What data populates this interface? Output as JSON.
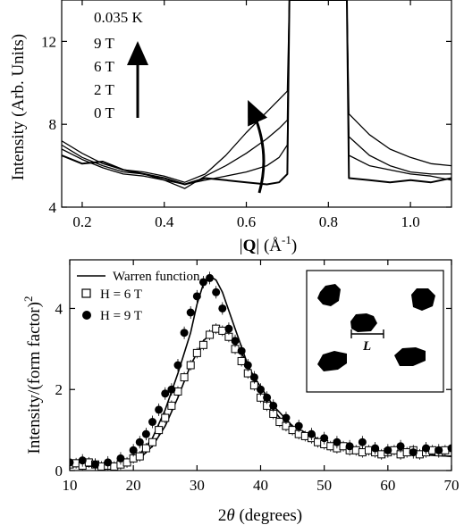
{
  "chart_data": [
    {
      "type": "line",
      "xlabel": "|Q| (Å⁻¹)",
      "xlabel_parts": [
        "|",
        "Q",
        "|",
        " (Å",
        "-1",
        ")"
      ],
      "ylabel": "Intensity (Arb. Units)",
      "xlim": [
        0.15,
        1.1
      ],
      "ylim": [
        4,
        14
      ],
      "x_ticks": [
        0.2,
        0.4,
        0.6,
        0.8,
        1.0
      ],
      "x_tick_labels": [
        "0.2",
        "0.4",
        "0.6",
        "0.8",
        "1.0"
      ],
      "y_ticks": [
        4,
        8,
        12
      ],
      "y_tick_labels": [
        "4",
        "8",
        "12"
      ],
      "legend_title": "0.035 K",
      "field_labels": [
        "9 T",
        "6 T",
        "2 T",
        "0 T"
      ],
      "series": [
        {
          "points": [
            [
              0.15,
              6.5
            ],
            [
              0.2,
              6.1
            ],
            [
              0.25,
              6.2
            ],
            [
              0.3,
              5.8
            ],
            [
              0.35,
              5.6
            ],
            [
              0.4,
              5.4
            ],
            [
              0.45,
              5.1
            ],
            [
              0.5,
              5.4
            ],
            [
              0.55,
              5.3
            ],
            [
              0.6,
              5.2
            ],
            [
              0.65,
              5.1
            ],
            [
              0.68,
              5.2
            ],
            [
              0.7,
              5.6
            ],
            [
              0.705,
              14
            ],
            [
              0.845,
              14
            ],
            [
              0.85,
              5.4
            ],
            [
              0.9,
              5.3
            ],
            [
              0.95,
              5.2
            ],
            [
              1.0,
              5.3
            ],
            [
              1.05,
              5.2
            ],
            [
              1.1,
              5.4
            ]
          ]
        },
        {
          "points": [
            [
              0.15,
              7.0
            ],
            [
              0.2,
              6.4
            ],
            [
              0.25,
              6.0
            ],
            [
              0.3,
              5.7
            ],
            [
              0.35,
              5.6
            ],
            [
              0.4,
              5.3
            ],
            [
              0.45,
              5.1
            ],
            [
              0.5,
              5.3
            ],
            [
              0.55,
              5.5
            ],
            [
              0.6,
              5.7
            ],
            [
              0.65,
              6.0
            ],
            [
              0.68,
              6.4
            ],
            [
              0.7,
              7.0
            ],
            [
              0.705,
              14
            ],
            [
              0.845,
              14
            ],
            [
              0.85,
              6.5
            ],
            [
              0.9,
              6.0
            ],
            [
              0.95,
              5.8
            ],
            [
              1.0,
              5.6
            ],
            [
              1.05,
              5.5
            ],
            [
              1.1,
              5.3
            ]
          ]
        },
        {
          "points": [
            [
              0.15,
              6.8
            ],
            [
              0.2,
              6.3
            ],
            [
              0.25,
              5.9
            ],
            [
              0.3,
              5.6
            ],
            [
              0.35,
              5.5
            ],
            [
              0.4,
              5.3
            ],
            [
              0.45,
              4.9
            ],
            [
              0.5,
              5.5
            ],
            [
              0.55,
              6.0
            ],
            [
              0.6,
              6.6
            ],
            [
              0.65,
              7.3
            ],
            [
              0.68,
              7.8
            ],
            [
              0.7,
              8.2
            ],
            [
              0.705,
              14
            ],
            [
              0.845,
              14
            ],
            [
              0.85,
              7.4
            ],
            [
              0.9,
              6.5
            ],
            [
              0.95,
              6.0
            ],
            [
              1.0,
              5.7
            ],
            [
              1.05,
              5.6
            ],
            [
              1.1,
              5.6
            ]
          ]
        },
        {
          "points": [
            [
              0.15,
              7.2
            ],
            [
              0.2,
              6.6
            ],
            [
              0.25,
              6.1
            ],
            [
              0.3,
              5.8
            ],
            [
              0.35,
              5.7
            ],
            [
              0.4,
              5.5
            ],
            [
              0.45,
              5.2
            ],
            [
              0.5,
              5.6
            ],
            [
              0.55,
              6.5
            ],
            [
              0.6,
              7.6
            ],
            [
              0.65,
              8.6
            ],
            [
              0.68,
              9.2
            ],
            [
              0.7,
              9.6
            ],
            [
              0.705,
              14
            ],
            [
              0.845,
              14
            ],
            [
              0.85,
              8.5
            ],
            [
              0.9,
              7.5
            ],
            [
              0.95,
              6.8
            ],
            [
              1.0,
              6.4
            ],
            [
              1.05,
              6.1
            ],
            [
              1.1,
              6.0
            ]
          ]
        }
      ]
    },
    {
      "type": "scatter",
      "xlabel": "2θ (degrees)",
      "xlabel_parts": [
        "2",
        "θ",
        " (degrees)"
      ],
      "ylabel": "Intensity/(form factor)²",
      "ylabel_parts": [
        "Intensity/(form factor)",
        "2"
      ],
      "xlim": [
        10,
        70
      ],
      "ylim": [
        0,
        5.2
      ],
      "x_ticks": [
        10,
        20,
        30,
        40,
        50,
        60,
        70
      ],
      "x_tick_labels": [
        "10",
        "20",
        "30",
        "40",
        "50",
        "60",
        "70"
      ],
      "y_ticks": [
        0,
        2,
        4
      ],
      "y_tick_labels": [
        "0",
        "2",
        "4"
      ],
      "legend": [
        "Warren function",
        "H = 6 T",
        "H = 9 T"
      ],
      "inset_label": "L",
      "series": [
        {
          "name": "Warren function",
          "style": "line",
          "curves": [
            [
              [
                10,
                0.1
              ],
              [
                16,
                0.12
              ],
              [
                19,
                0.2
              ],
              [
                21,
                0.4
              ],
              [
                23,
                0.8
              ],
              [
                25,
                1.5
              ],
              [
                27,
                2.4
              ],
              [
                29,
                3.4
              ],
              [
                30,
                4.1
              ],
              [
                31,
                4.6
              ],
              [
                32,
                4.8
              ],
              [
                33,
                4.7
              ],
              [
                34,
                4.4
              ],
              [
                36,
                3.5
              ],
              [
                38,
                2.6
              ],
              [
                40,
                1.9
              ],
              [
                43,
                1.3
              ],
              [
                47,
                0.9
              ],
              [
                52,
                0.6
              ],
              [
                60,
                0.45
              ],
              [
                70,
                0.35
              ]
            ],
            [
              [
                10,
                0.1
              ],
              [
                16,
                0.12
              ],
              [
                19,
                0.18
              ],
              [
                21,
                0.3
              ],
              [
                23,
                0.6
              ],
              [
                25,
                1.1
              ],
              [
                27,
                1.8
              ],
              [
                29,
                2.6
              ],
              [
                31,
                3.2
              ],
              [
                33,
                3.5
              ],
              [
                34,
                3.5
              ],
              [
                35,
                3.4
              ],
              [
                37,
                2.9
              ],
              [
                39,
                2.3
              ],
              [
                42,
                1.6
              ],
              [
                45,
                1.1
              ],
              [
                50,
                0.7
              ],
              [
                58,
                0.45
              ],
              [
                70,
                0.35
              ]
            ]
          ]
        },
        {
          "name": "H = 6 T",
          "style": "open-square",
          "points": [
            [
              10,
              0.15
            ],
            [
              11,
              0.18
            ],
            [
              12,
              0.12
            ],
            [
              13,
              0.2
            ],
            [
              14,
              0.15
            ],
            [
              15,
              0.1
            ],
            [
              16,
              0.12
            ],
            [
              17,
              0.1
            ],
            [
              18,
              0.15
            ],
            [
              19,
              0.2
            ],
            [
              20,
              0.3
            ],
            [
              21,
              0.35
            ],
            [
              22,
              0.55
            ],
            [
              23,
              0.7
            ],
            [
              24,
              1.0
            ],
            [
              25,
              1.3
            ],
            [
              26,
              1.6
            ],
            [
              27,
              1.95
            ],
            [
              28,
              2.3
            ],
            [
              29,
              2.6
            ],
            [
              30,
              2.9
            ],
            [
              31,
              3.1
            ],
            [
              32,
              3.35
            ],
            [
              33,
              3.5
            ],
            [
              34,
              3.45
            ],
            [
              35,
              3.3
            ],
            [
              36,
              3.0
            ],
            [
              37,
              2.7
            ],
            [
              38,
              2.4
            ],
            [
              39,
              2.1
            ],
            [
              40,
              1.8
            ],
            [
              41,
              1.6
            ],
            [
              42,
              1.4
            ],
            [
              43,
              1.2
            ],
            [
              44,
              1.1
            ],
            [
              45,
              1.0
            ],
            [
              46,
              0.9
            ],
            [
              47,
              0.85
            ],
            [
              48,
              0.8
            ],
            [
              49,
              0.7
            ],
            [
              50,
              0.65
            ],
            [
              51,
              0.6
            ],
            [
              52,
              0.55
            ],
            [
              53,
              0.6
            ],
            [
              54,
              0.5
            ],
            [
              55,
              0.5
            ],
            [
              56,
              0.45
            ],
            [
              57,
              0.5
            ],
            [
              58,
              0.45
            ],
            [
              59,
              0.4
            ],
            [
              60,
              0.45
            ],
            [
              61,
              0.5
            ],
            [
              62,
              0.4
            ],
            [
              63,
              0.45
            ],
            [
              64,
              0.5
            ],
            [
              65,
              0.4
            ],
            [
              66,
              0.45
            ],
            [
              67,
              0.5
            ],
            [
              68,
              0.45
            ],
            [
              69,
              0.5
            ]
          ]
        },
        {
          "name": "H = 9 T",
          "style": "filled-circle",
          "points": [
            [
              10,
              0.2
            ],
            [
              12,
              0.25
            ],
            [
              14,
              0.15
            ],
            [
              16,
              0.2
            ],
            [
              18,
              0.3
            ],
            [
              20,
              0.5
            ],
            [
              21,
              0.7
            ],
            [
              22,
              0.9
            ],
            [
              23,
              1.2
            ],
            [
              24,
              1.5
            ],
            [
              25,
              1.9
            ],
            [
              26,
              2.0
            ],
            [
              27,
              2.6
            ],
            [
              28,
              3.4
            ],
            [
              29,
              3.9
            ],
            [
              30,
              4.3
            ],
            [
              31,
              4.65
            ],
            [
              32,
              4.75
            ],
            [
              33,
              4.4
            ],
            [
              34,
              4.0
            ],
            [
              35,
              3.5
            ],
            [
              36,
              3.2
            ],
            [
              37,
              2.95
            ],
            [
              38,
              2.6
            ],
            [
              39,
              2.3
            ],
            [
              40,
              2.0
            ],
            [
              41,
              1.8
            ],
            [
              42,
              1.6
            ],
            [
              44,
              1.3
            ],
            [
              46,
              1.1
            ],
            [
              48,
              0.9
            ],
            [
              50,
              0.8
            ],
            [
              52,
              0.7
            ],
            [
              54,
              0.6
            ],
            [
              56,
              0.7
            ],
            [
              58,
              0.55
            ],
            [
              60,
              0.5
            ],
            [
              62,
              0.6
            ],
            [
              64,
              0.45
            ],
            [
              66,
              0.55
            ],
            [
              68,
              0.5
            ],
            [
              70,
              0.55
            ]
          ]
        }
      ]
    }
  ]
}
